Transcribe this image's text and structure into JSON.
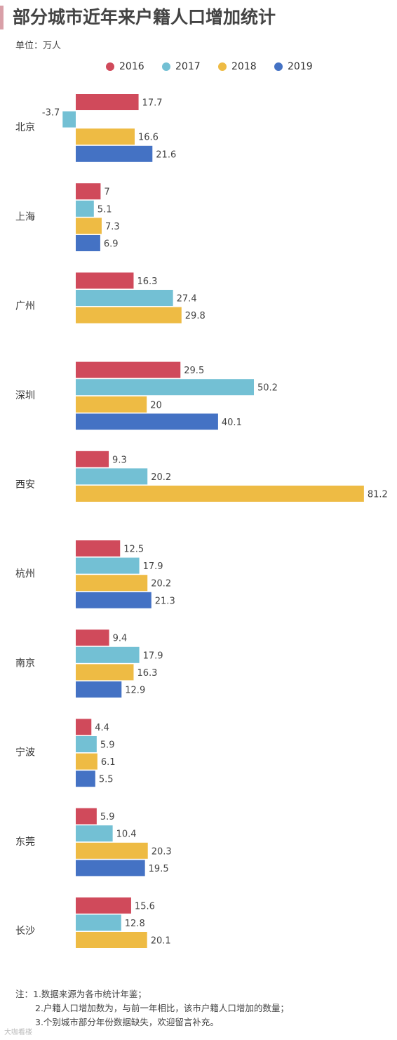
{
  "title": "部分城市近年来户籍人口增加统计",
  "unit": "单位：万人",
  "colors": {
    "2016": "#d04a5b",
    "2017": "#73c0d4",
    "2018": "#eebb44",
    "2019": "#4472c4"
  },
  "chart_data": {
    "type": "bar",
    "orientation": "horizontal",
    "title": "部分城市近年来户籍人口增加统计",
    "categories": [
      "北京",
      "上海",
      "广州",
      "深圳",
      "西安",
      "杭州",
      "南京",
      "宁波",
      "东莞",
      "长沙"
    ],
    "series": [
      {
        "name": "2016",
        "values": [
          17.7,
          7,
          16.3,
          29.5,
          9.3,
          12.5,
          9.4,
          4.4,
          5.9,
          15.6
        ]
      },
      {
        "name": "2017",
        "values": [
          -3.7,
          5.1,
          27.4,
          50.2,
          20.2,
          17.9,
          17.9,
          5.9,
          10.4,
          12.8
        ]
      },
      {
        "name": "2018",
        "values": [
          16.6,
          7.3,
          29.8,
          20,
          81.2,
          20.2,
          16.3,
          6.1,
          20.3,
          20.1
        ]
      },
      {
        "name": "2019",
        "values": [
          21.6,
          6.9,
          null,
          40.1,
          null,
          21.3,
          12.9,
          5.5,
          19.5,
          null
        ]
      }
    ],
    "legend_position": "top",
    "grid": false
  },
  "notes": [
    "注：1.数据来源为各市统计年鉴；",
    "2.户籍人口增加数为，与前一年相比，该市户籍人口增加的数量；",
    "3.个别城市部分年份数据缺失，欢迎留言补充。"
  ],
  "watermark": "大咖看楼"
}
